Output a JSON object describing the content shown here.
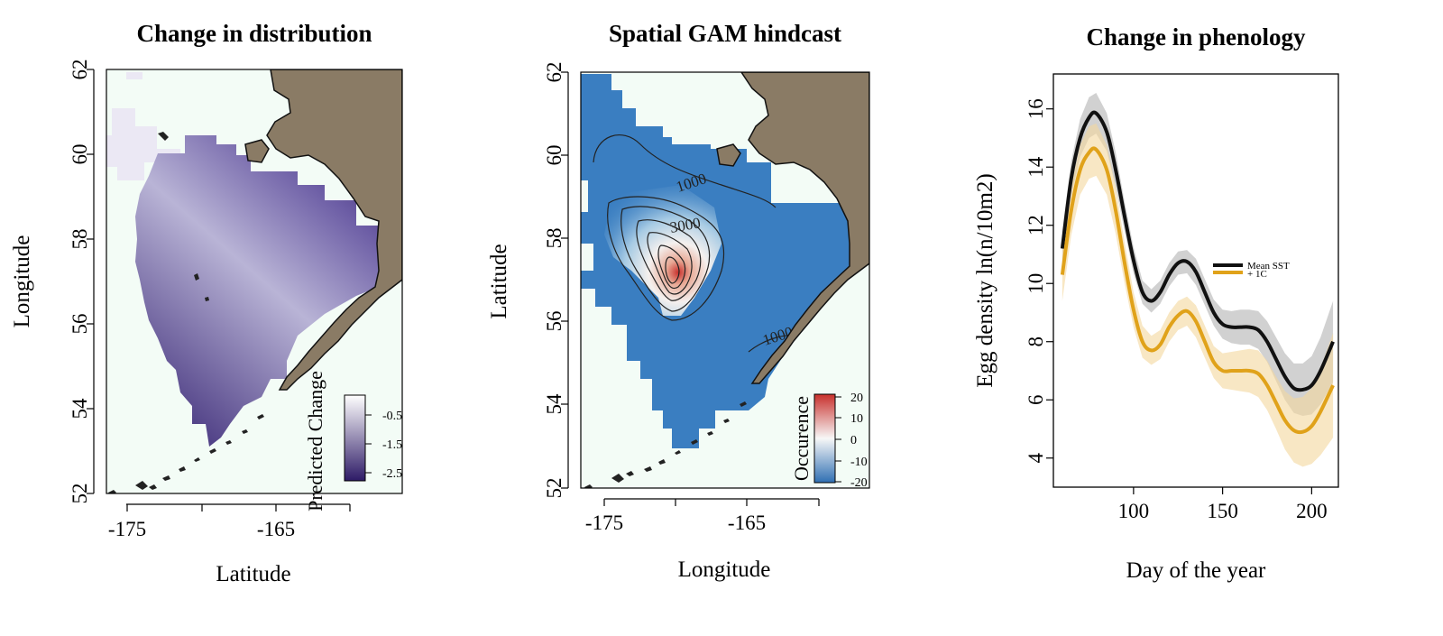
{
  "colors": {
    "land": "#8a7b65",
    "sea": "#f3fcf6",
    "purple_dark": "#2d1a66",
    "purple_light": "#f1eff8",
    "blue_field": "#3a7ec1",
    "red_peak": "#c8302c",
    "mean_line": "#111111",
    "mean_band": "#c9c9c9",
    "warm_line": "#e0a21a",
    "warm_band": "#f4d79c"
  },
  "panel1": {
    "title": "Change in distribution",
    "xlabel": "Latitude",
    "ylabel": "Longitude",
    "xticks": [
      "-175",
      "-165"
    ],
    "yticks": [
      "62",
      "60",
      "58",
      "56",
      "54",
      "52"
    ],
    "legend_title": "Predicted Change",
    "legend_ticks": [
      "-0.5",
      "-1.5",
      "-2.5"
    ]
  },
  "panel2": {
    "title": "Spatial GAM hindcast",
    "xlabel": "Longitude",
    "ylabel": "Latitude",
    "xticks": [
      "-175",
      "-165"
    ],
    "yticks": [
      "62",
      "60",
      "58",
      "56",
      "54",
      "52"
    ],
    "legend_title": "Occurence",
    "legend_ticks": [
      "20",
      "10",
      "0",
      "-10",
      "-20"
    ],
    "contour_labels": [
      "1000",
      "3000",
      "1000"
    ]
  },
  "chart_data": {
    "type": "line",
    "title": "Change in phenology",
    "xlabel": "Day of the year",
    "ylabel": "Egg density ln(n/10m2)",
    "xlim": [
      55,
      215
    ],
    "ylim": [
      3,
      17.2
    ],
    "xticks": [
      100,
      150,
      200
    ],
    "yticks": [
      4,
      6,
      8,
      10,
      12,
      14,
      16
    ],
    "legend_position": "center-right",
    "series": [
      {
        "name": "Mean SST",
        "color": "#111111",
        "x": [
          60,
          65,
          70,
          75,
          79,
          85,
          90,
          95,
          100,
          105,
          110,
          115,
          120,
          125,
          130,
          135,
          140,
          145,
          150,
          155,
          160,
          165,
          170,
          175,
          180,
          185,
          190,
          195,
          200,
          205,
          212
        ],
        "y": [
          11.2,
          13.6,
          15.0,
          15.7,
          15.85,
          15.2,
          13.9,
          12.3,
          10.8,
          9.7,
          9.4,
          9.7,
          10.3,
          10.7,
          10.75,
          10.4,
          9.7,
          9.0,
          8.6,
          8.5,
          8.5,
          8.5,
          8.4,
          8.0,
          7.4,
          6.8,
          6.4,
          6.35,
          6.5,
          7.0,
          8.0
        ],
        "band": [
          0.6,
          0.6,
          0.65,
          0.7,
          0.7,
          0.65,
          0.6,
          0.5,
          0.45,
          0.4,
          0.4,
          0.4,
          0.4,
          0.4,
          0.4,
          0.45,
          0.45,
          0.45,
          0.5,
          0.55,
          0.6,
          0.6,
          0.65,
          0.7,
          0.75,
          0.8,
          0.85,
          0.9,
          1.0,
          1.15,
          1.4
        ]
      },
      {
        "name": "+ 1C",
        "color": "#e0a21a",
        "x": [
          60,
          65,
          70,
          75,
          79,
          85,
          90,
          95,
          100,
          105,
          110,
          115,
          120,
          125,
          130,
          135,
          140,
          145,
          150,
          155,
          160,
          165,
          170,
          175,
          180,
          185,
          190,
          195,
          200,
          205,
          212
        ],
        "y": [
          10.3,
          12.5,
          13.9,
          14.5,
          14.6,
          13.9,
          12.5,
          10.7,
          9.1,
          8.0,
          7.7,
          7.9,
          8.5,
          8.9,
          9.05,
          8.7,
          8.0,
          7.3,
          7.0,
          7.0,
          7.0,
          7.0,
          6.9,
          6.5,
          5.9,
          5.3,
          4.95,
          4.9,
          5.1,
          5.6,
          6.5
        ],
        "band": [
          0.9,
          0.85,
          0.85,
          0.9,
          0.9,
          0.85,
          0.8,
          0.7,
          0.6,
          0.55,
          0.5,
          0.5,
          0.5,
          0.5,
          0.5,
          0.55,
          0.55,
          0.55,
          0.6,
          0.65,
          0.7,
          0.75,
          0.8,
          0.85,
          0.9,
          1.0,
          1.1,
          1.2,
          1.3,
          1.5,
          1.8
        ]
      }
    ]
  }
}
